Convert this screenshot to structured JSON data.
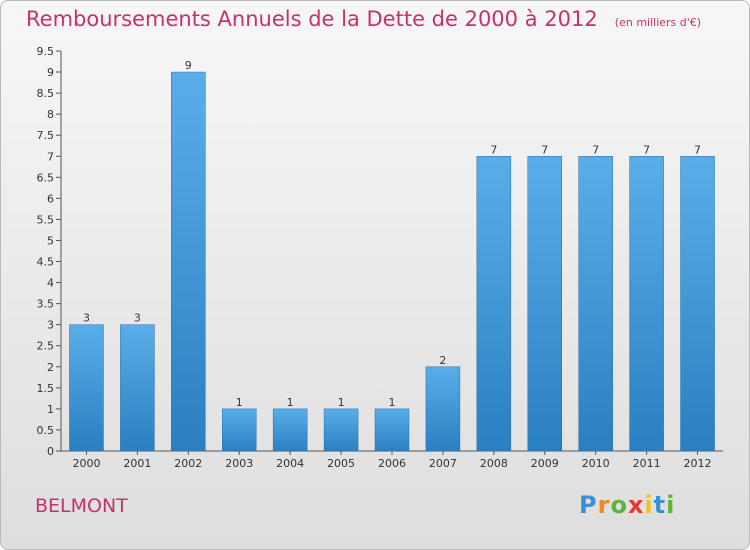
{
  "chart_data": {
    "type": "bar",
    "title": "Remboursements Annuels de la Dette de 2000 à 2012",
    "subtitle": "(en milliers d'€)",
    "categories": [
      "2000",
      "2001",
      "2002",
      "2003",
      "2004",
      "2005",
      "2006",
      "2007",
      "2008",
      "2009",
      "2010",
      "2011",
      "2012"
    ],
    "values": [
      3,
      3,
      9,
      1,
      1,
      1,
      1,
      2,
      7,
      7,
      7,
      7,
      7
    ],
    "data_labels": [
      "3",
      "3",
      "9",
      "1",
      "1",
      "1",
      "1",
      "2",
      "7",
      "7",
      "7",
      "7",
      "7"
    ],
    "ylim": [
      0,
      9.5
    ],
    "yticks": [
      0,
      0.5,
      1,
      1.5,
      2,
      2.5,
      3,
      3.5,
      4,
      4.5,
      5,
      5.5,
      6,
      6.5,
      7,
      7.5,
      8,
      8.5,
      9,
      9.5
    ],
    "ytick_labels": [
      "0",
      "0.5",
      "1",
      "1.5",
      "2",
      "2.5",
      "3",
      "3.5",
      "4",
      "4.5",
      "5",
      "5.5",
      "6",
      "6.5",
      "7",
      "7.5",
      "8",
      "8.5",
      "9",
      "9.5"
    ],
    "grid": false,
    "bar_color_light": "#5aaee8",
    "bar_color_dark": "#2a7fc2"
  },
  "place": "BELMONT",
  "logo": {
    "letters": [
      "P",
      "r",
      "o",
      "x",
      "i",
      "t",
      "i"
    ],
    "colors": [
      "#3a8fd8",
      "#f08a1c",
      "#5db43a",
      "#e6372c",
      "#f0c419",
      "#3a8fd8",
      "#5db43a"
    ]
  }
}
